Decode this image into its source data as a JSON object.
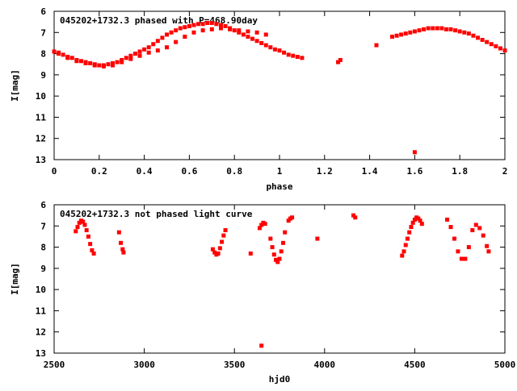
{
  "chart_data": [
    {
      "type": "scatter",
      "title": "045202+1732.3 phased with P=468.90day",
      "xlabel": "phase",
      "ylabel": "I[mag]",
      "xlim": [
        0,
        2
      ],
      "ylim": [
        6,
        13
      ],
      "y_inverted": true,
      "x_ticks": [
        0,
        0.2,
        0.4,
        0.6,
        0.8,
        1,
        1.2,
        1.4,
        1.6,
        1.8,
        2
      ],
      "x_tick_labels": [
        "0",
        "0.2",
        "0.4",
        "0.6",
        "0.8",
        "1",
        "1.2",
        "1.4",
        "1.6",
        "1.8",
        "2"
      ],
      "y_ticks": [
        6,
        7,
        8,
        9,
        10,
        11,
        12,
        13
      ],
      "y_tick_labels": [
        "6",
        "7",
        "8",
        "9",
        "10",
        "11",
        "12",
        "13"
      ],
      "grid": false,
      "color": "#ff0000",
      "series": [
        {
          "x": [
            0.0,
            0.02,
            0.04,
            0.06,
            0.08,
            0.1,
            0.12,
            0.14,
            0.16,
            0.18,
            0.2,
            0.22,
            0.24,
            0.26,
            0.28,
            0.3,
            0.32,
            0.34,
            0.36,
            0.38,
            0.4,
            0.42,
            0.44,
            0.46,
            0.48,
            0.5,
            0.52,
            0.54,
            0.56,
            0.58,
            0.6,
            0.62,
            0.64,
            0.66,
            0.68,
            0.7,
            0.72,
            0.74,
            0.76,
            0.78,
            0.8,
            0.82,
            0.84,
            0.86,
            0.88,
            0.9,
            0.92,
            0.94,
            0.96,
            0.98,
            1.0,
            1.02,
            1.04,
            1.06,
            1.08,
            1.1,
            0.02,
            0.06,
            0.1,
            0.14,
            0.18,
            0.22,
            0.26,
            0.3,
            0.34,
            0.38,
            0.42,
            0.46,
            0.5,
            0.54,
            0.58,
            0.62,
            0.66,
            0.7,
            0.74,
            0.78,
            0.82,
            0.86,
            0.9,
            0.94,
            1.26,
            1.27,
            1.43,
            1.6,
            1.5,
            1.52,
            1.54,
            1.56,
            1.58,
            1.6,
            1.62,
            1.64,
            1.66,
            1.68,
            1.7,
            1.72,
            1.74,
            1.76,
            1.78,
            1.8,
            1.82,
            1.84,
            1.86,
            1.88,
            1.9,
            1.92,
            1.94,
            1.96,
            1.98,
            2.0
          ],
          "y": [
            7.9,
            7.95,
            8.05,
            8.15,
            8.2,
            8.3,
            8.35,
            8.4,
            8.45,
            8.5,
            8.55,
            8.55,
            8.5,
            8.45,
            8.4,
            8.3,
            8.2,
            8.1,
            8.0,
            7.9,
            7.8,
            7.7,
            7.55,
            7.4,
            7.25,
            7.1,
            7.0,
            6.9,
            6.8,
            6.75,
            6.7,
            6.65,
            6.6,
            6.6,
            6.55,
            6.55,
            6.6,
            6.65,
            6.7,
            6.8,
            6.9,
            7.0,
            7.1,
            7.2,
            7.3,
            7.4,
            7.5,
            7.6,
            7.7,
            7.8,
            7.85,
            7.95,
            8.05,
            8.1,
            8.15,
            8.2,
            8.0,
            8.2,
            8.35,
            8.45,
            8.55,
            8.6,
            8.55,
            8.4,
            8.25,
            8.1,
            7.95,
            7.85,
            7.7,
            7.45,
            7.2,
            7.0,
            6.9,
            6.85,
            6.8,
            6.85,
            6.9,
            6.95,
            7.0,
            7.1,
            8.4,
            8.3,
            7.6,
            12.65,
            7.2,
            7.15,
            7.1,
            7.05,
            7.0,
            6.95,
            6.9,
            6.85,
            6.8,
            6.8,
            6.8,
            6.8,
            6.85,
            6.85,
            6.9,
            6.95,
            7.0,
            7.05,
            7.15,
            7.25,
            7.35,
            7.45,
            7.55,
            7.65,
            7.75,
            7.85
          ]
        }
      ]
    },
    {
      "type": "scatter",
      "title": "045202+1732.3 not phased light curve",
      "xlabel": "hjd0",
      "ylabel": "I[mag]",
      "xlim": [
        2500,
        5000
      ],
      "ylim": [
        6,
        13
      ],
      "y_inverted": true,
      "x_ticks": [
        2500,
        3000,
        3500,
        4000,
        4500,
        5000
      ],
      "x_tick_labels": [
        "2500",
        "3000",
        "3500",
        "4000",
        "4500",
        "5000"
      ],
      "y_ticks": [
        6,
        7,
        8,
        9,
        10,
        11,
        12,
        13
      ],
      "y_tick_labels": [
        "6",
        "7",
        "8",
        "9",
        "10",
        "11",
        "12",
        "13"
      ],
      "grid": false,
      "color": "#ff0000",
      "series": [
        {
          "x": [
            2620,
            2630,
            2640,
            2650,
            2660,
            2670,
            2680,
            2690,
            2700,
            2710,
            2720,
            2860,
            2870,
            2880,
            2885,
            3380,
            3390,
            3400,
            3410,
            3420,
            3430,
            3440,
            3450,
            3590,
            3640,
            3650,
            3660,
            3670,
            3700,
            3710,
            3720,
            3730,
            3740,
            3750,
            3760,
            3770,
            3780,
            3800,
            3810,
            3820,
            3960,
            4160,
            4170,
            4430,
            4440,
            4450,
            4460,
            4470,
            4480,
            4490,
            4500,
            4510,
            4520,
            4530,
            4540,
            4680,
            4700,
            4720,
            4740,
            4760,
            4780,
            4800,
            4820,
            4840,
            4860,
            4880,
            4900,
            4910,
            3650
          ],
          "y": [
            7.25,
            7.05,
            6.85,
            6.75,
            6.8,
            6.95,
            7.2,
            7.5,
            7.85,
            8.15,
            8.3,
            7.3,
            7.8,
            8.1,
            8.25,
            8.1,
            8.25,
            8.35,
            8.3,
            8.05,
            7.75,
            7.45,
            7.2,
            8.3,
            7.1,
            6.95,
            6.85,
            6.9,
            7.6,
            8.0,
            8.35,
            8.6,
            8.7,
            8.55,
            8.2,
            7.8,
            7.3,
            6.75,
            6.65,
            6.6,
            7.6,
            6.5,
            6.6,
            8.4,
            8.2,
            7.9,
            7.6,
            7.3,
            7.05,
            6.85,
            6.7,
            6.6,
            6.65,
            6.75,
            6.9,
            6.7,
            7.05,
            7.6,
            8.2,
            8.55,
            8.55,
            8.0,
            7.2,
            6.95,
            7.1,
            7.45,
            7.95,
            8.2,
            12.65
          ]
        }
      ]
    }
  ]
}
